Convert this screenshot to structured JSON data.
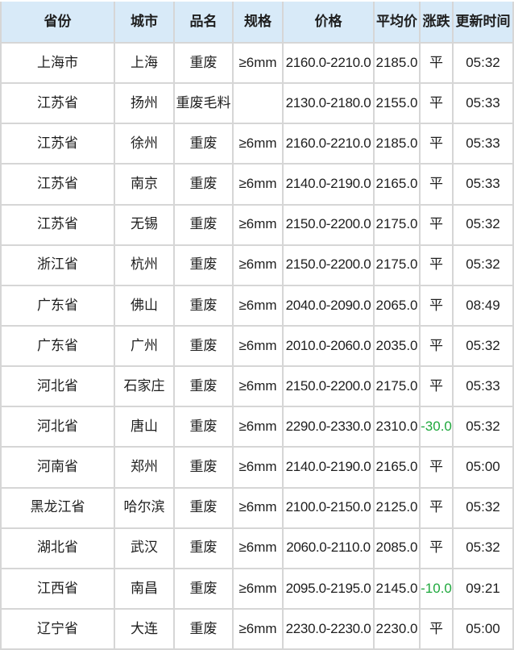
{
  "colors": {
    "header_bg": "#d8eaf8",
    "border": "#d6d6d6",
    "text": "#1e1e1e",
    "negative_green": "#1fa83d"
  },
  "table": {
    "headers": [
      "省份",
      "城市",
      "品名",
      "规格",
      "价格",
      "平均价",
      "涨跌",
      "更新时间"
    ],
    "rows": [
      {
        "province": "上海市",
        "city": "上海",
        "product": "重废",
        "spec": "≥6mm",
        "price": "2160.0-2210.0",
        "avg": "2185.0",
        "change": "平",
        "time": "05:32"
      },
      {
        "province": "江苏省",
        "city": "扬州",
        "product": "重废毛料",
        "spec": "",
        "price": "2130.0-2180.0",
        "avg": "2155.0",
        "change": "平",
        "time": "05:33"
      },
      {
        "province": "江苏省",
        "city": "徐州",
        "product": "重废",
        "spec": "≥6mm",
        "price": "2160.0-2210.0",
        "avg": "2185.0",
        "change": "平",
        "time": "05:33"
      },
      {
        "province": "江苏省",
        "city": "南京",
        "product": "重废",
        "spec": "≥6mm",
        "price": "2140.0-2190.0",
        "avg": "2165.0",
        "change": "平",
        "time": "05:33"
      },
      {
        "province": "江苏省",
        "city": "无锡",
        "product": "重废",
        "spec": "≥6mm",
        "price": "2150.0-2200.0",
        "avg": "2175.0",
        "change": "平",
        "time": "05:32"
      },
      {
        "province": "浙江省",
        "city": "杭州",
        "product": "重废",
        "spec": "≥6mm",
        "price": "2150.0-2200.0",
        "avg": "2175.0",
        "change": "平",
        "time": "05:32"
      },
      {
        "province": "广东省",
        "city": "佛山",
        "product": "重废",
        "spec": "≥6mm",
        "price": "2040.0-2090.0",
        "avg": "2065.0",
        "change": "平",
        "time": "08:49"
      },
      {
        "province": "广东省",
        "city": "广州",
        "product": "重废",
        "spec": "≥6mm",
        "price": "2010.0-2060.0",
        "avg": "2035.0",
        "change": "平",
        "time": "05:32"
      },
      {
        "province": "河北省",
        "city": "石家庄",
        "product": "重废",
        "spec": "≥6mm",
        "price": "2150.0-2200.0",
        "avg": "2175.0",
        "change": "平",
        "time": "05:33"
      },
      {
        "province": "河北省",
        "city": "唐山",
        "product": "重废",
        "spec": "≥6mm",
        "price": "2290.0-2330.0",
        "avg": "2310.0",
        "change": "-30.0",
        "time": "05:32"
      },
      {
        "province": "河南省",
        "city": "郑州",
        "product": "重废",
        "spec": "≥6mm",
        "price": "2140.0-2190.0",
        "avg": "2165.0",
        "change": "平",
        "time": "05:00"
      },
      {
        "province": "黑龙江省",
        "city": "哈尔滨",
        "product": "重废",
        "spec": "≥6mm",
        "price": "2100.0-2150.0",
        "avg": "2125.0",
        "change": "平",
        "time": "05:32"
      },
      {
        "province": "湖北省",
        "city": "武汉",
        "product": "重废",
        "spec": "≥6mm",
        "price": "2060.0-2110.0",
        "avg": "2085.0",
        "change": "平",
        "time": "05:32"
      },
      {
        "province": "江西省",
        "city": "南昌",
        "product": "重废",
        "spec": "≥6mm",
        "price": "2095.0-2195.0",
        "avg": "2145.0",
        "change": "-10.0",
        "time": "09:21"
      },
      {
        "province": "辽宁省",
        "city": "大连",
        "product": "重废",
        "spec": "≥6mm",
        "price": "2230.0-2230.0",
        "avg": "2230.0",
        "change": "平",
        "time": "05:00"
      }
    ]
  }
}
